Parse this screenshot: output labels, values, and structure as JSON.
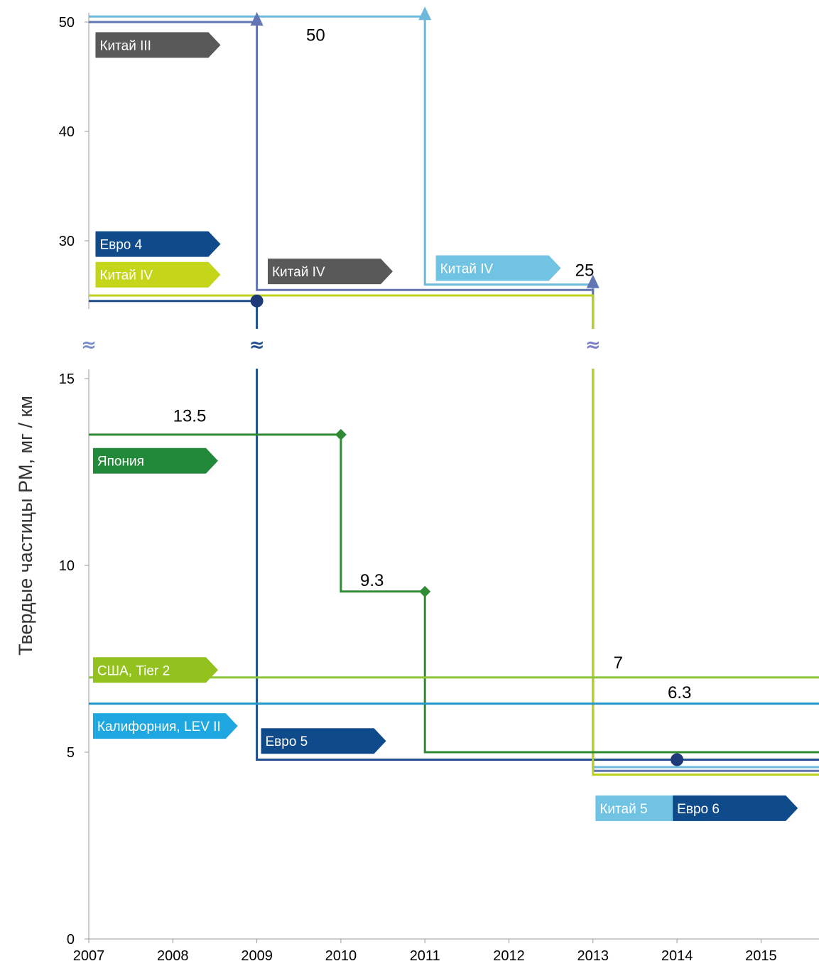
{
  "chart_data": {
    "type": "line",
    "chart_subtype": "step",
    "ylabel": "Твердые частицы PM, мг / км",
    "xlabel": "",
    "x_ticks": [
      "2007",
      "2008",
      "2009",
      "2010",
      "2011",
      "2012",
      "2013",
      "2014",
      "2015"
    ],
    "y_ticks_lower": [
      "0",
      "5",
      "10",
      "15"
    ],
    "y_ticks_upper": [
      "30",
      "40",
      "50"
    ],
    "ylim_lower": [
      0,
      15
    ],
    "ylim_upper": [
      30,
      50
    ],
    "axis_break": true,
    "axis_break_symbol": "≈",
    "grid": false,
    "series": [
      {
        "name": "Китай IV / Китай 5",
        "color": "#6cb9dc",
        "x": [
          2007,
          2011,
          2011,
          2013,
          2013,
          2015.7
        ],
        "y": [
          50.5,
          50.5,
          26,
          26,
          4.6,
          4.6
        ]
      },
      {
        "name": "Китай III / Китай IV",
        "color": "#6274b4",
        "x": [
          2007,
          2009,
          2009,
          2013,
          2013,
          2015.7
        ],
        "y": [
          50,
          50,
          25.5,
          25.5,
          4.5,
          4.5
        ]
      },
      {
        "name": "Евро 4 / Евро 5 / Евро 6",
        "color": "#1f4e8c",
        "x": [
          2007,
          2009,
          2009,
          2015.7
        ],
        "y": [
          24.5,
          24.5,
          4.8,
          4.8
        ]
      },
      {
        "name": "Китай IV",
        "color": "#bdd01c",
        "x": [
          2007,
          2013,
          2013,
          2015.7
        ],
        "y": [
          25,
          25,
          4.4,
          4.4
        ]
      },
      {
        "name": "Япония",
        "color": "#2e8b33",
        "x": [
          2007,
          2010,
          2010,
          2011,
          2011,
          2015.7
        ],
        "y": [
          13.5,
          13.5,
          9.3,
          9.3,
          5,
          5
        ]
      },
      {
        "name": "США, Tier 2",
        "color": "#8fc43b",
        "x": [
          2007,
          2015.7
        ],
        "y": [
          7,
          7
        ]
      },
      {
        "name": "Калифорния, LEV II",
        "color": "#2596c8",
        "x": [
          2007,
          2015.7
        ],
        "y": [
          6.3,
          6.3
        ]
      }
    ],
    "markers": [
      {
        "type": "circle",
        "x": 2009,
        "y": 24.5,
        "color": "#1f3a78"
      },
      {
        "type": "circle",
        "x": 2014,
        "y": 4.8,
        "color": "#1f3a78"
      },
      {
        "type": "diamond",
        "x": 2010,
        "y": 13.5,
        "color": "#2e8b33"
      },
      {
        "type": "diamond",
        "x": 2011,
        "y": 9.3,
        "color": "#2e8b33"
      },
      {
        "type": "arrow-up",
        "x": 2009,
        "y": 50,
        "color": "#6274b4"
      },
      {
        "type": "arrow-up",
        "x": 2011,
        "y": 50.5,
        "color": "#6cb9dc"
      },
      {
        "type": "arrow-up",
        "x": 2013,
        "y": 26,
        "color": "#6274b4"
      }
    ],
    "value_labels": [
      {
        "text": "50",
        "x": 2009.7,
        "y": 48.8
      },
      {
        "text": "25",
        "x": 2012.9,
        "y": 27.3
      },
      {
        "text": "13.5",
        "x": 2008.2,
        "y": 14.0
      },
      {
        "text": "9.3",
        "x": 2010.37,
        "y": 9.6
      },
      {
        "text": "7",
        "x": 2013.3,
        "y": 7.4
      },
      {
        "text": "6.3",
        "x": 2014.03,
        "y": 6.6
      }
    ],
    "tags": [
      {
        "text": "Китай III",
        "color": "#595959",
        "x": 2007.08,
        "y": 47.9
      },
      {
        "text": "Евро 4",
        "color": "#0f4a8a",
        "x": 2007.08,
        "y": 29.7
      },
      {
        "text": "Китай IV",
        "color": "#c4d51a",
        "x": 2007.08,
        "y": 26.9
      },
      {
        "text": "Китай IV",
        "color": "#595959",
        "x": 2009.13,
        "y": 27.2
      },
      {
        "text": "Китай IV",
        "color": "#70c3e3",
        "x": 2011.13,
        "y": 27.5
      },
      {
        "text": "Япония",
        "color": "#23893a",
        "x": 2007.05,
        "y": 12.8
      },
      {
        "text": "США, Tier 2",
        "color": "#93c21e",
        "x": 2007.05,
        "y": 7.2
      },
      {
        "text": "Калифорния, LEV II",
        "color": "#1ea7e1",
        "x": 2007.05,
        "y": 5.7
      },
      {
        "text": "Евро 5",
        "color": "#0f4a8a",
        "x": 2009.05,
        "y": 5.3
      },
      {
        "text": "Китай 5",
        "color": "#70c3e3",
        "x": 2013.03,
        "y": 3.5
      },
      {
        "text": "Евро 6",
        "color": "#0f4a8a",
        "x": 2013.95,
        "y": 3.5
      }
    ]
  }
}
